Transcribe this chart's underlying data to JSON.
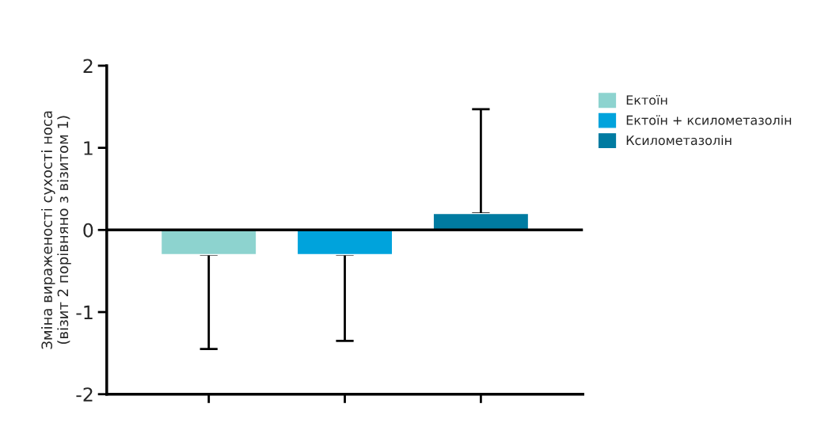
{
  "chart_data": {
    "type": "bar",
    "ylabel": "Зміна вираженості сухості носа\n(візит 2 порівняно з візитом 1)",
    "categories": [
      null,
      null,
      null
    ],
    "series": [
      {
        "name": "Ектоїн",
        "color": "#8dd3cf",
        "values": [
          -0.3,
          null,
          null
        ],
        "errors": [
          [
            -1.45,
            -0.3
          ],
          null,
          null
        ]
      },
      {
        "name": "Ектоїн + ксилометазолін",
        "color": "#00a3dc",
        "values": [
          null,
          -0.3,
          null
        ],
        "errors": [
          null,
          [
            -1.35,
            -0.3
          ],
          null
        ]
      },
      {
        "name": "Ксилометазолін",
        "color": "#007ba1",
        "values": [
          null,
          null,
          0.2
        ],
        "errors": [
          null,
          null,
          [
            0.2,
            1.47
          ]
        ]
      }
    ],
    "ylim": [
      -2,
      2
    ],
    "yticks": [
      -2,
      -1,
      0,
      1,
      2
    ],
    "ref_lines": [
      {
        "axis": "y",
        "value": 0,
        "label": null,
        "color": "#000000"
      }
    ],
    "grid": false,
    "legend": "right"
  }
}
